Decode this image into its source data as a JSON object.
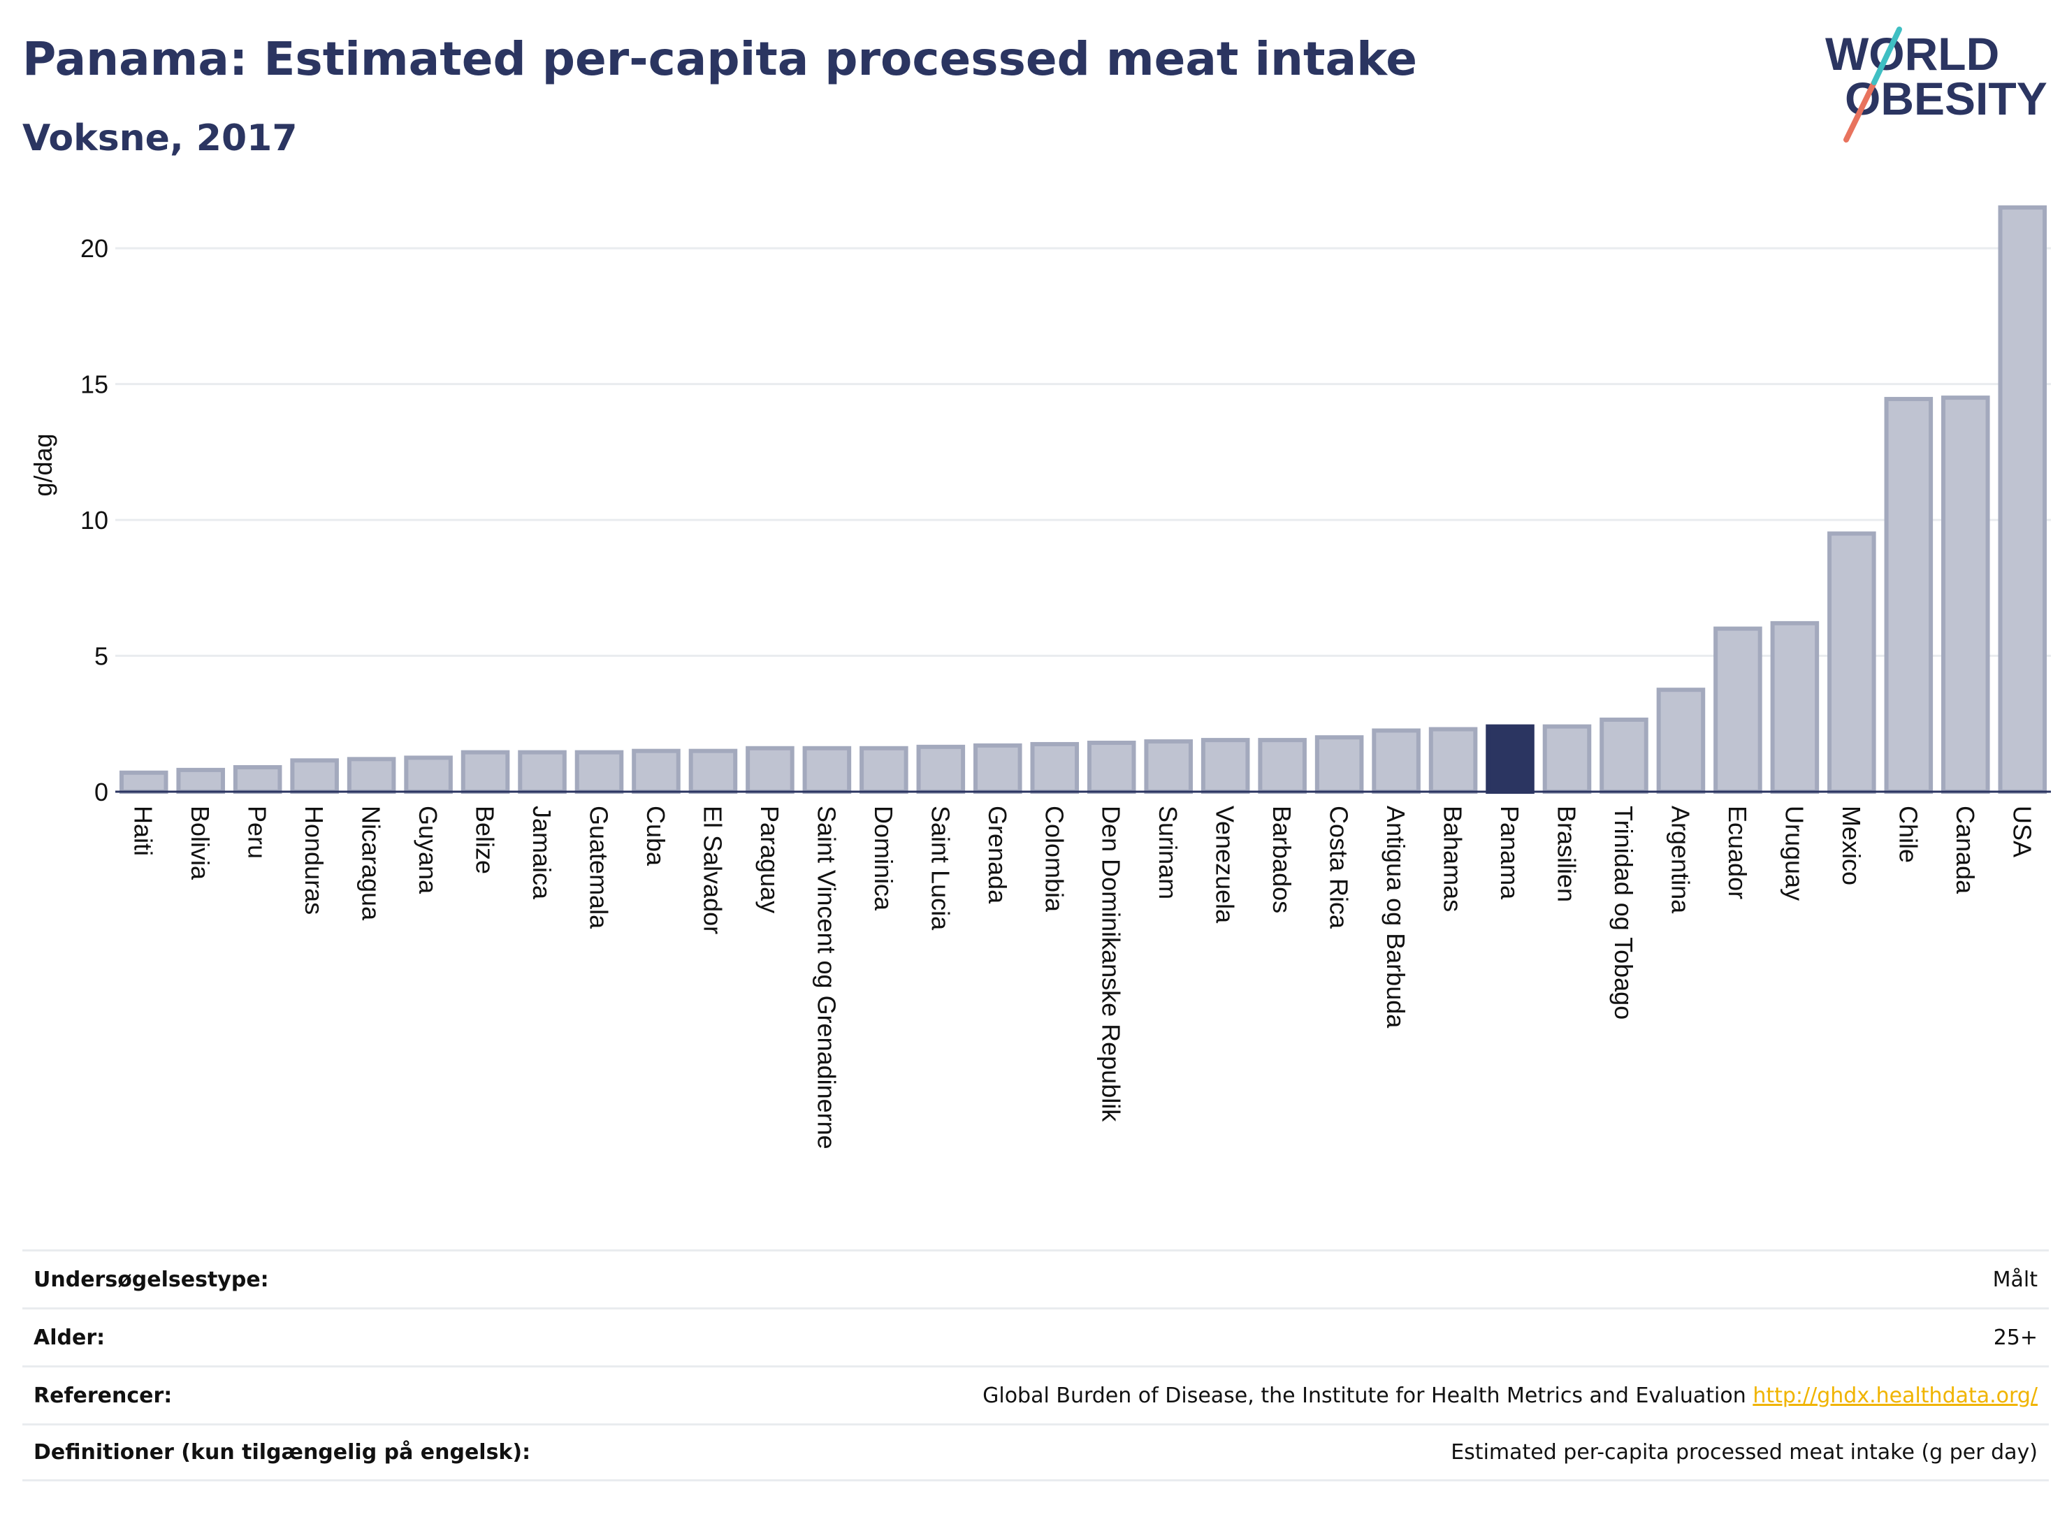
{
  "header": {
    "title": "Panama: Estimated per-capita processed meat intake",
    "subtitle": "Voksne, 2017"
  },
  "logo": {
    "line1": "WORLD",
    "line2": "OBESITY"
  },
  "chart_data": {
    "type": "bar",
    "title": "Panama: Estimated per-capita processed meat intake",
    "subtitle": "Voksne, 2017",
    "ylabel": "g/dag",
    "xlabel": "",
    "ylim": [
      0,
      22.5
    ],
    "yticks": [
      0,
      5,
      10,
      15,
      20
    ],
    "grid": true,
    "highlight": "Panama",
    "colors": {
      "bar": "#bfc3d1",
      "bar_edge": "#a3a9bd",
      "highlight": "#2b3561"
    },
    "categories": [
      "Haiti",
      "Bolivia",
      "Peru",
      "Honduras",
      "Nicaragua",
      "Guyana",
      "Belize",
      "Jamaica",
      "Guatemala",
      "Cuba",
      "El Salvador",
      "Paraguay",
      "Saint Vincent og Grenadinerne",
      "Dominica",
      "Saint Lucia",
      "Grenada",
      "Colombia",
      "Den Dominikanske Republik",
      "Surinam",
      "Venezuela",
      "Barbados",
      "Costa Rica",
      "Antigua og Barbuda",
      "Bahamas",
      "Panama",
      "Brasilien",
      "Trinidad og Tobago",
      "Argentina",
      "Ecuador",
      "Uruguay",
      "Mexico",
      "Chile",
      "Canada",
      "USA"
    ],
    "values": [
      0.7,
      0.8,
      0.9,
      1.15,
      1.2,
      1.25,
      1.45,
      1.45,
      1.45,
      1.5,
      1.5,
      1.6,
      1.6,
      1.6,
      1.65,
      1.7,
      1.75,
      1.8,
      1.85,
      1.9,
      1.9,
      2.0,
      2.25,
      2.3,
      2.4,
      2.4,
      2.65,
      3.75,
      6.0,
      6.2,
      9.5,
      14.45,
      14.5,
      21.5
    ]
  },
  "info_table": [
    {
      "label": "Undersøgelsestype:",
      "value": "Målt"
    },
    {
      "label": "Alder:",
      "value": "25+"
    },
    {
      "label": "Referencer:",
      "value": "Global Burden of Disease, the Institute for Health Metrics and Evaluation",
      "link": "http://ghdx.healthdata.org/"
    },
    {
      "label": "Definitioner (kun tilgængelig på engelsk):",
      "value": "Estimated per-capita processed meat intake (g per day)"
    }
  ]
}
